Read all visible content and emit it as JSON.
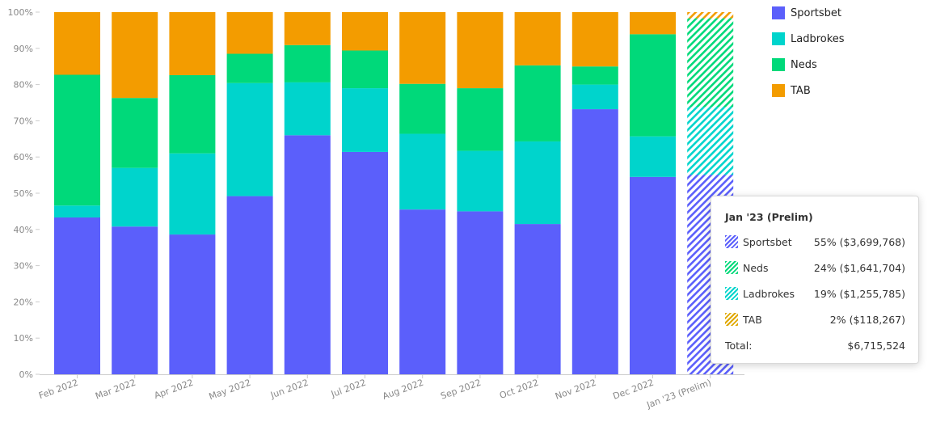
{
  "chart_data": {
    "type": "bar",
    "stacked": true,
    "normalized": true,
    "y_ticks": [
      "0%",
      "10%",
      "20%",
      "30%",
      "40%",
      "50%",
      "60%",
      "70%",
      "80%",
      "90%",
      "100%"
    ],
    "ylim": [
      0,
      100
    ],
    "grid": false,
    "legend_position": "top-right",
    "categories": [
      "Feb 2022",
      "Mar 2022",
      "Apr 2022",
      "May 2022",
      "Jun 2022",
      "Jul 2022",
      "Aug 2022",
      "Sep 2022",
      "Oct 2022",
      "Nov 2022",
      "Dec 2022",
      "Jan '23 (Prelim)"
    ],
    "preliminary_category": "Jan '23 (Prelim)",
    "series": [
      {
        "name": "Sportsbet",
        "color": "#5b5ffb",
        "values": [
          43.3,
          40.8,
          38.6,
          49.2,
          66.0,
          61.4,
          45.5,
          45.0,
          41.5,
          73.2,
          54.5,
          55.1
        ]
      },
      {
        "name": "Ladbrokes",
        "color": "#00d4cc",
        "values": [
          3.3,
          16.2,
          22.4,
          31.2,
          14.6,
          17.6,
          20.9,
          16.7,
          22.8,
          6.8,
          11.2,
          18.7
        ]
      },
      {
        "name": "Neds",
        "color": "#00d97a",
        "values": [
          36.1,
          19.3,
          21.6,
          8.1,
          10.3,
          10.4,
          13.8,
          17.3,
          21.0,
          5.0,
          28.2,
          24.5
        ]
      },
      {
        "name": "TAB",
        "color": "#f39c00",
        "values": [
          17.3,
          23.7,
          17.4,
          11.5,
          9.1,
          10.6,
          19.8,
          21.0,
          14.7,
          15.0,
          6.1,
          1.7
        ]
      }
    ]
  },
  "legend": {
    "items": [
      {
        "label": "Sportsbet",
        "color": "#5b5ffb"
      },
      {
        "label": "Ladbrokes",
        "color": "#00d4cc"
      },
      {
        "label": "Neds",
        "color": "#00d97a"
      },
      {
        "label": "TAB",
        "color": "#f39c00"
      }
    ]
  },
  "tooltip": {
    "title": "Jan '23 (Prelim)",
    "rows": [
      {
        "name": "Sportsbet",
        "value": "55% ($3,699,768)",
        "color": "#5b5ffb"
      },
      {
        "name": "Neds",
        "value": "24% ($1,641,704)",
        "color": "#00d97a"
      },
      {
        "name": "Ladbrokes",
        "value": "19% ($1,255,785)",
        "color": "#00d4cc"
      },
      {
        "name": "TAB",
        "value": "2% ($118,267)",
        "color": "#e0a800"
      }
    ],
    "total_label": "Total:",
    "total_value": "$6,715,524"
  }
}
